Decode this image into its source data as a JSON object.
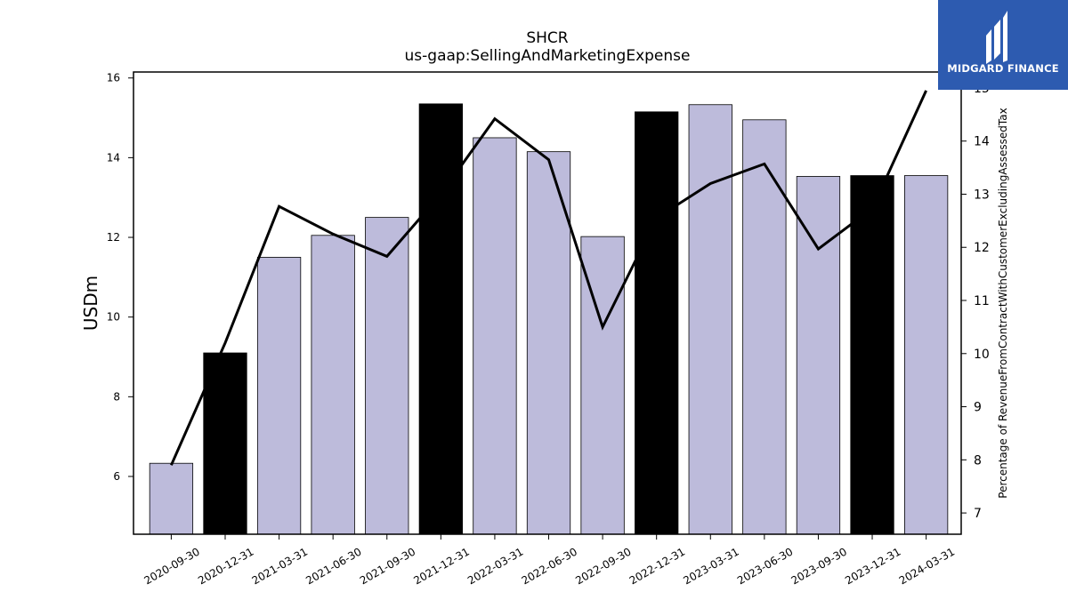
{
  "chart_data": {
    "type": "bar",
    "title": "SHCR",
    "subtitle": "us-gaap:SellingAndMarketingExpense",
    "ylabel": "USDm",
    "y2label": "Percentage of RevenueFromContractWithCustomerExcludingAssessedTax",
    "categories": [
      "2020-09-30",
      "2020-12-31",
      "2021-03-31",
      "2021-06-30",
      "2021-09-30",
      "2021-12-31",
      "2022-03-31",
      "2022-06-30",
      "2022-09-30",
      "2022-12-31",
      "2023-03-31",
      "2023-06-30",
      "2023-09-30",
      "2023-12-31",
      "2024-03-31"
    ],
    "series": [
      {
        "type": "bar",
        "axis": "left",
        "values": [
          6.33,
          9.1,
          11.5,
          12.05,
          12.5,
          15.35,
          14.5,
          14.15,
          12.02,
          15.15,
          15.33,
          14.95,
          13.53,
          13.55,
          13.55
        ],
        "highlight": [
          false,
          true,
          false,
          false,
          false,
          true,
          false,
          false,
          false,
          true,
          false,
          false,
          false,
          true,
          false
        ]
      },
      {
        "type": "line",
        "axis": "right",
        "values": [
          7.9,
          10.2,
          12.77,
          12.25,
          11.83,
          13.0,
          14.42,
          13.65,
          10.5,
          12.55,
          13.2,
          13.57,
          11.97,
          12.73,
          14.95
        ]
      }
    ],
    "ylim": [
      4.55,
      16.15
    ],
    "yticks": [
      6,
      8,
      10,
      12,
      14,
      16
    ],
    "y2lim": [
      6.6,
      15.3
    ],
    "y2ticks": [
      7,
      8,
      9,
      10,
      11,
      12,
      13,
      14,
      15
    ],
    "colors": {
      "bar": "#bdbbdb",
      "bar_highlight": "#000000",
      "line": "#000000",
      "edge": "#000000"
    }
  },
  "logo": {
    "text": "MIDGARD FINANCE",
    "bg_color": "#2d5bb0"
  }
}
